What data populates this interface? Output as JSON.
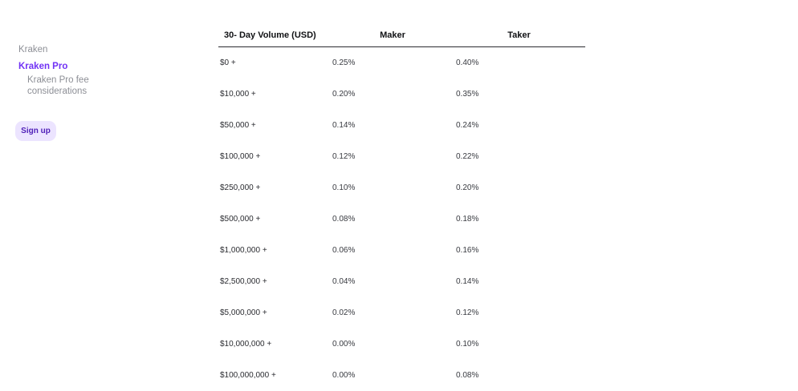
{
  "sidebar": {
    "items": [
      {
        "label": "Kraken"
      },
      {
        "label": "Kraken Pro"
      },
      {
        "label": "Kraken Pro fee considerations"
      }
    ],
    "signup_label": "Sign up"
  },
  "colors": {
    "accent": "#7132f5",
    "accent_soft_bg": "#ece4ff",
    "muted_text": "#8d8f96"
  },
  "fee_table": {
    "headers": {
      "volume": "30- Day Volume (USD)",
      "maker": "Maker",
      "taker": "Taker"
    },
    "rows": [
      {
        "volume": "$0 +",
        "maker": "0.25%",
        "taker": "0.40%"
      },
      {
        "volume": "$10,000 +",
        "maker": "0.20%",
        "taker": "0.35%"
      },
      {
        "volume": "$50,000 +",
        "maker": "0.14%",
        "taker": "0.24%"
      },
      {
        "volume": "$100,000 +",
        "maker": "0.12%",
        "taker": "0.22%"
      },
      {
        "volume": "$250,000 +",
        "maker": "0.10%",
        "taker": "0.20%"
      },
      {
        "volume": "$500,000 +",
        "maker": "0.08%",
        "taker": "0.18%"
      },
      {
        "volume": "$1,000,000 +",
        "maker": "0.06%",
        "taker": "0.16%"
      },
      {
        "volume": "$2,500,000 +",
        "maker": "0.04%",
        "taker": "0.14%"
      },
      {
        "volume": "$5,000,000 +",
        "maker": "0.02%",
        "taker": "0.12%"
      },
      {
        "volume": "$10,000,000 +",
        "maker": "0.00%",
        "taker": "0.10%"
      },
      {
        "volume": "$100,000,000 +",
        "maker": "0.00%",
        "taker": "0.08%"
      }
    ]
  }
}
